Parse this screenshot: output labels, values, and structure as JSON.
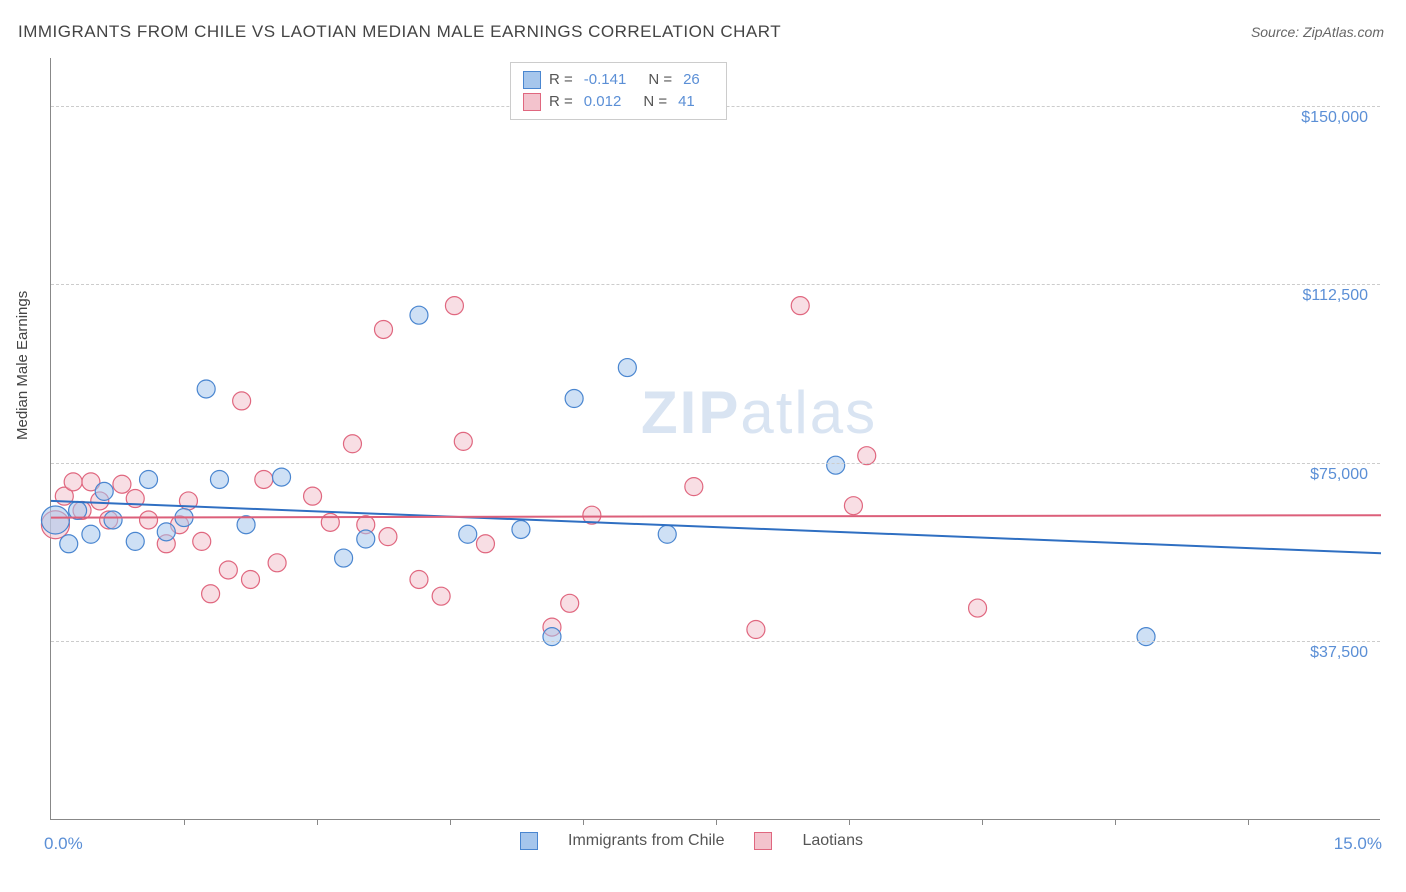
{
  "title": "IMMIGRANTS FROM CHILE VS LAOTIAN MEDIAN MALE EARNINGS CORRELATION CHART",
  "source": "Source: ZipAtlas.com",
  "yaxis_title": "Median Male Earnings",
  "watermark": "ZIPatlas",
  "chart": {
    "type": "scatter",
    "xlim": [
      0,
      15
    ],
    "ylim": [
      0,
      160000
    ],
    "x_tick_positions": [
      1.5,
      3.0,
      4.5,
      6.0,
      7.5,
      9.0,
      10.5,
      12.0,
      13.5
    ],
    "y_gridlines": [
      {
        "value": 37500,
        "label": "$37,500"
      },
      {
        "value": 75000,
        "label": "$75,000"
      },
      {
        "value": 112500,
        "label": "$112,500"
      },
      {
        "value": 150000,
        "label": "$150,000"
      }
    ],
    "x_left_label": "0.0%",
    "x_right_label": "15.0%",
    "series": [
      {
        "name": "Immigrants from Chile",
        "short": "chile",
        "fill": "#a6c6ec",
        "stroke": "#4a86d0",
        "line_color": "#2f6fc2",
        "R": "-0.141",
        "N": "26",
        "trend": {
          "y_at_x0": 67000,
          "y_at_x15": 56000
        },
        "points": [
          {
            "x": 0.05,
            "y": 63000,
            "r": 14
          },
          {
            "x": 0.2,
            "y": 58000
          },
          {
            "x": 0.3,
            "y": 65000
          },
          {
            "x": 0.45,
            "y": 60000
          },
          {
            "x": 0.6,
            "y": 69000
          },
          {
            "x": 0.7,
            "y": 63000
          },
          {
            "x": 0.95,
            "y": 58500
          },
          {
            "x": 1.1,
            "y": 71500
          },
          {
            "x": 1.3,
            "y": 60500
          },
          {
            "x": 1.5,
            "y": 63500
          },
          {
            "x": 1.75,
            "y": 90500
          },
          {
            "x": 1.9,
            "y": 71500
          },
          {
            "x": 2.2,
            "y": 62000
          },
          {
            "x": 2.6,
            "y": 72000
          },
          {
            "x": 3.3,
            "y": 55000
          },
          {
            "x": 3.55,
            "y": 59000
          },
          {
            "x": 4.15,
            "y": 106000
          },
          {
            "x": 4.7,
            "y": 60000
          },
          {
            "x": 5.3,
            "y": 61000
          },
          {
            "x": 5.65,
            "y": 38500
          },
          {
            "x": 5.9,
            "y": 88500
          },
          {
            "x": 6.5,
            "y": 95000
          },
          {
            "x": 6.95,
            "y": 60000
          },
          {
            "x": 8.85,
            "y": 74500
          },
          {
            "x": 12.35,
            "y": 38500
          }
        ]
      },
      {
        "name": "Laotians",
        "short": "laotians",
        "fill": "#f3c3cd",
        "stroke": "#e0677f",
        "line_color": "#dc5f7a",
        "R": "0.012",
        "N": "41",
        "trend": {
          "y_at_x0": 63500,
          "y_at_x15": 64000
        },
        "points": [
          {
            "x": 0.05,
            "y": 62000,
            "r": 14
          },
          {
            "x": 0.15,
            "y": 68000
          },
          {
            "x": 0.25,
            "y": 71000
          },
          {
            "x": 0.35,
            "y": 65000
          },
          {
            "x": 0.45,
            "y": 71000
          },
          {
            "x": 0.55,
            "y": 67000
          },
          {
            "x": 0.65,
            "y": 63000
          },
          {
            "x": 0.8,
            "y": 70500
          },
          {
            "x": 0.95,
            "y": 67500
          },
          {
            "x": 1.1,
            "y": 63000
          },
          {
            "x": 1.3,
            "y": 58000
          },
          {
            "x": 1.45,
            "y": 62000
          },
          {
            "x": 1.55,
            "y": 67000
          },
          {
            "x": 1.7,
            "y": 58500
          },
          {
            "x": 1.8,
            "y": 47500
          },
          {
            "x": 2.0,
            "y": 52500
          },
          {
            "x": 2.15,
            "y": 88000
          },
          {
            "x": 2.25,
            "y": 50500
          },
          {
            "x": 2.4,
            "y": 71500
          },
          {
            "x": 2.55,
            "y": 54000
          },
          {
            "x": 2.95,
            "y": 68000
          },
          {
            "x": 3.15,
            "y": 62500
          },
          {
            "x": 3.4,
            "y": 79000
          },
          {
            "x": 3.55,
            "y": 62000
          },
          {
            "x": 3.75,
            "y": 103000
          },
          {
            "x": 3.8,
            "y": 59500
          },
          {
            "x": 4.15,
            "y": 50500
          },
          {
            "x": 4.4,
            "y": 47000
          },
          {
            "x": 4.55,
            "y": 108000
          },
          {
            "x": 4.65,
            "y": 79500
          },
          {
            "x": 4.9,
            "y": 58000
          },
          {
            "x": 5.65,
            "y": 40500
          },
          {
            "x": 5.85,
            "y": 45500
          },
          {
            "x": 6.1,
            "y": 64000
          },
          {
            "x": 7.25,
            "y": 70000
          },
          {
            "x": 7.95,
            "y": 40000
          },
          {
            "x": 8.45,
            "y": 108000
          },
          {
            "x": 9.05,
            "y": 66000
          },
          {
            "x": 9.2,
            "y": 76500
          },
          {
            "x": 10.45,
            "y": 44500
          }
        ]
      }
    ],
    "default_marker_radius": 9,
    "marker_opacity": 0.55,
    "background_color": "#ffffff",
    "grid_color": "#cccccc"
  },
  "legend_top": {
    "r_label": "R =",
    "n_label": "N ="
  }
}
